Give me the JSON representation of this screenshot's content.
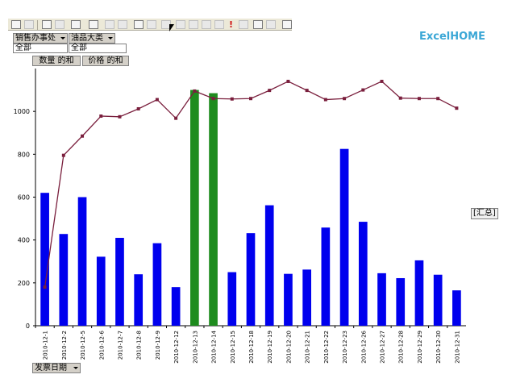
{
  "logo": {
    "text": "ExcelHOME"
  },
  "page_fields": [
    {
      "name": "销售办事处",
      "value": "全部"
    },
    {
      "name": "油品大类",
      "value": "全部"
    }
  ],
  "series_buttons": [
    "数量 的和",
    "价格 的和"
  ],
  "category_field": "发票日期",
  "total_label": "[汇总]",
  "colors": {
    "bar": "#0000ee",
    "bar_highlight": "#1e8c1e",
    "line": "#7a1f3d",
    "marker": "#7a1f3d"
  },
  "chart_data": {
    "type": "bar",
    "categories": [
      "2010-12-1",
      "2010-12-2",
      "2010-12-5",
      "2010-12-6",
      "2010-12-7",
      "2010-12-8",
      "2010-12-9",
      "2010-12-12",
      "2010-12-13",
      "2010-12-14",
      "2010-12-15",
      "2010-12-18",
      "2010-12-19",
      "2010-12-20",
      "2010-12-21",
      "2010-12-22",
      "2010-12-23",
      "2010-12-26",
      "2010-12-27",
      "2010-12-28",
      "2010-12-29",
      "2010-12-30",
      "2010-12-31"
    ],
    "series": [
      {
        "name": "数量 的和",
        "type": "bar",
        "values": [
          620,
          428,
          600,
          322,
          410,
          240,
          385,
          180,
          1100,
          1085,
          250,
          432,
          562,
          242,
          262,
          458,
          825,
          485,
          245,
          222,
          305,
          238,
          165
        ],
        "highlight_indices": [
          8,
          9
        ]
      },
      {
        "name": "价格 的和",
        "type": "line",
        "values": [
          180,
          795,
          885,
          978,
          975,
          1012,
          1055,
          968,
          1095,
          1060,
          1058,
          1060,
          1098,
          1140,
          1098,
          1055,
          1060,
          1100,
          1140,
          1062,
          1060,
          1060,
          1015
        ]
      }
    ],
    "yticks": [
      0,
      200,
      400,
      600,
      800,
      1000
    ],
    "ylim": [
      0,
      1200
    ],
    "grid": false,
    "legend": "none"
  }
}
